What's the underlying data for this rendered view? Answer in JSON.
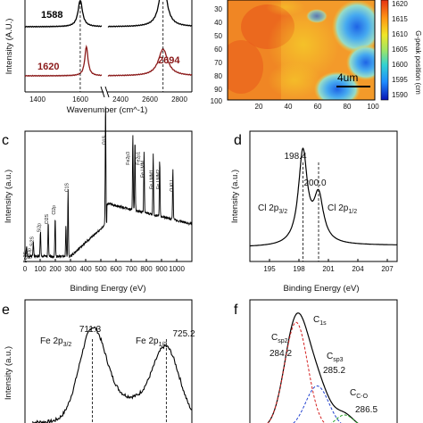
{
  "panels": {
    "a": {
      "ylabel": "Intensity (A.U.)",
      "xlabel": "Wavenumber (cm^-1)",
      "xticks": [
        "1400",
        "1600",
        "2400",
        "2600",
        "2800"
      ],
      "peaks_black": [
        "1588"
      ],
      "peaks_red": [
        "1620",
        "2694"
      ]
    },
    "b": {
      "colorbar_label": "G-peak position (cm",
      "colorbar_ticks": [
        "1620",
        "1615",
        "1610",
        "1605",
        "1600",
        "1595",
        "1590"
      ],
      "yticks": [
        "30",
        "40",
        "50",
        "60",
        "70",
        "80",
        "90",
        "100"
      ],
      "xticks": [
        "20",
        "40",
        "60",
        "80",
        "100"
      ],
      "scalebar": "4um"
    },
    "c": {
      "label": "c",
      "ylabel": "Intensity (a.u.)",
      "xlabel": "Binding Energy (eV)",
      "xticks": [
        "0",
        "100",
        "200",
        "300",
        "400",
        "500",
        "600",
        "700",
        "800",
        "900",
        "1000"
      ],
      "peak_labels": [
        "O1S",
        "Fe2p3",
        "Fe2p1",
        "Fe LMM",
        "Fe LMM1",
        "Fe LMM2",
        "O KLL",
        "C1S",
        "Cl2p",
        "Cl2S",
        "Si2p",
        "Si2S",
        "Fe3p",
        "Fe3S"
      ]
    },
    "d": {
      "label": "d",
      "ylabel": "Intensity (a.u.)",
      "xlabel": "Binding Energy (eV)",
      "xticks": [
        "195",
        "198",
        "201",
        "204",
        "207"
      ],
      "ann1_value": "198.4",
      "ann2_value": "200.0",
      "ann1_name": "Cl 2p",
      "ann1_sub": "3/2",
      "ann2_name": "Cl 2p",
      "ann2_sub": "1/2"
    },
    "e": {
      "label": "e",
      "ylabel": "Intensity (a.u.)",
      "ann1_value": "711.3",
      "ann2_value": "725.2",
      "ann1_name": "Fe 2p",
      "ann1_sub": "3/2",
      "ann2_name": "Fe 2p",
      "ann2_sub": "1/2"
    },
    "f": {
      "label": "f",
      "c1s_name": "C",
      "c1s_sub": "1s",
      "csp2_name": "C",
      "csp2_sub": "sp2",
      "csp2_value": "284.2",
      "csp3_name": "C",
      "csp3_sub": "sp3",
      "csp3_value": "285.2",
      "cco_name": "C",
      "cco_sub": "C-O",
      "cco_value": "286.5"
    }
  },
  "chart_data": [
    {
      "panel": "a",
      "type": "line",
      "xlabel": "Wavenumber (cm^-1)",
      "ylabel": "Intensity (A.U.)",
      "x_segments": [
        [
          1300,
          1700
        ],
        [
          2300,
          2900
        ]
      ],
      "series": [
        {
          "color": "#000000",
          "peaks": [
            {
              "center": 1588,
              "width": 14,
              "height": 0.55
            },
            {
              "center": 2694,
              "width": 30,
              "height": 1.0
            }
          ]
        },
        {
          "color": "#8b1a1a",
          "peaks": [
            {
              "center": 1620,
              "width": 10,
              "height": 0.55
            },
            {
              "center": 2694,
              "width": 40,
              "height": 0.5
            }
          ]
        }
      ],
      "dashed_lines_x": [
        1588,
        2694
      ]
    },
    {
      "panel": "b",
      "type": "heatmap",
      "x_range": [
        0,
        100
      ],
      "y_range": [
        25,
        100
      ],
      "colorbar_range": [
        1590,
        1620
      ],
      "colormap": [
        "#0a14b4",
        "#1e8cff",
        "#32d2d2",
        "#a0e664",
        "#f0e628",
        "#ff9614",
        "#e63214"
      ]
    },
    {
      "panel": "c",
      "type": "line",
      "xlabel": "Binding Energy (eV)",
      "ylabel": "Intensity (a.u.)",
      "xlim": [
        0,
        1100
      ],
      "peaks": [
        {
          "x": 10,
          "h": 0.08
        },
        {
          "x": 55,
          "h": 0.12
        },
        {
          "x": 102,
          "h": 0.2
        },
        {
          "x": 153,
          "h": 0.28
        },
        {
          "x": 199,
          "h": 0.32
        },
        {
          "x": 270,
          "h": 0.25
        },
        {
          "x": 284,
          "h": 0.55
        },
        {
          "x": 531,
          "h": 1.0
        },
        {
          "x": 711,
          "h": 0.62
        },
        {
          "x": 725,
          "h": 0.58
        },
        {
          "x": 785,
          "h": 0.5
        },
        {
          "x": 845,
          "h": 0.5
        },
        {
          "x": 888,
          "h": 0.46
        },
        {
          "x": 975,
          "h": 0.42
        }
      ]
    },
    {
      "panel": "d",
      "type": "line",
      "xlabel": "Binding Energy (eV)",
      "ylabel": "Intensity (a.u.)",
      "xlim": [
        193,
        208
      ],
      "peaks": [
        {
          "center": 198.4,
          "width": 0.55,
          "height": 1.0
        },
        {
          "center": 200.0,
          "width": 0.6,
          "height": 0.5
        }
      ],
      "dashed_lines_x": [
        198.4,
        200.0
      ]
    },
    {
      "panel": "e",
      "type": "line",
      "ylabel": "Intensity (a.u.)",
      "xlim": [
        700,
        730
      ],
      "peaks": [
        {
          "center": 711.3,
          "width": 2.5,
          "height": 1.0
        },
        {
          "center": 725.2,
          "width": 2.5,
          "height": 0.8
        }
      ],
      "dashed_lines_x": [
        711.3,
        725.2
      ]
    },
    {
      "panel": "f",
      "type": "line",
      "xlim": [
        282,
        289
      ],
      "series": [
        {
          "name": "C1s",
          "color": "#000000",
          "style": "solid"
        },
        {
          "name": "Csp2",
          "color": "#d42020",
          "style": "dashed",
          "center": 284.2
        },
        {
          "name": "Csp3",
          "color": "#2040d0",
          "style": "dashed",
          "center": 285.2
        },
        {
          "name": "C-O",
          "color": "#20a020",
          "style": "dashed",
          "center": 286.5
        }
      ]
    }
  ]
}
